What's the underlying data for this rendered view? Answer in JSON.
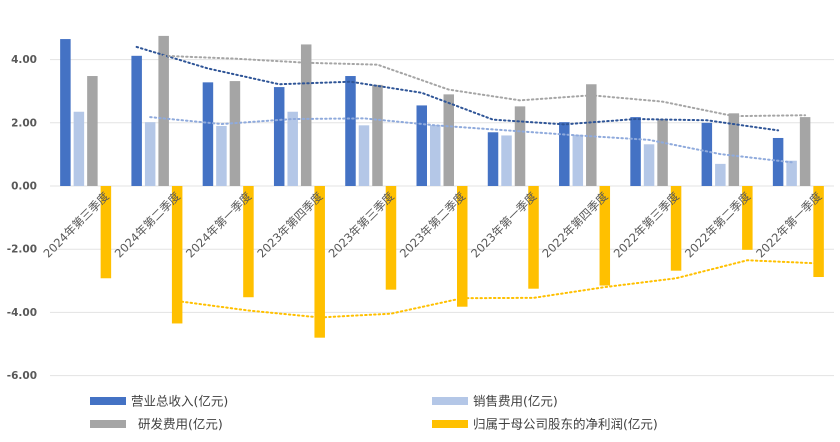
{
  "chart_data": {
    "type": "bar",
    "title": "",
    "xlabel": "",
    "ylabel": "",
    "ylim": [
      -6,
      4.8
    ],
    "yticks": [
      4.0,
      2.0,
      0.0,
      -2.0,
      -4.0,
      -6.0
    ],
    "ytick_labels": [
      "4.00",
      "2.00",
      "0.00",
      "-2.00",
      "-4.00",
      "-6.00"
    ],
    "grid": true,
    "legend_position": "bottom",
    "categories": [
      "2024年第三季度",
      "2024年第二季度",
      "2024年第一季度",
      "2023年第四季度",
      "2023年第三季度",
      "2023年第二季度",
      "2023年第一季度",
      "2022年第四季度",
      "2022年第三季度",
      "2022年第二季度",
      "2022年第一季度"
    ],
    "series": [
      {
        "name": "营业总收入(亿元)",
        "color": "#4472c4",
        "values": [
          4.65,
          4.12,
          3.28,
          3.13,
          3.48,
          2.55,
          1.7,
          2.02,
          2.18,
          2.0,
          1.52
        ]
      },
      {
        "name": "销售费用(亿元)",
        "color": "#b4c7e7",
        "values": [
          2.35,
          2.02,
          1.9,
          2.35,
          1.92,
          1.93,
          1.6,
          1.62,
          1.32,
          0.7,
          0.8
        ]
      },
      {
        "name": "研发费用(亿元)",
        "color": "#a5a5a5",
        "values": [
          3.48,
          4.75,
          3.32,
          4.48,
          3.2,
          2.9,
          2.52,
          3.22,
          2.12,
          2.3,
          2.18
        ]
      },
      {
        "name": "归属于母公司股东的净利润(亿元)",
        "color": "#ffc000",
        "values": [
          -2.92,
          -4.35,
          -3.52,
          -4.8,
          -3.28,
          -3.82,
          -3.25,
          -3.15,
          -2.68,
          -2.02,
          -2.88
        ]
      }
    ],
    "trendlines": [
      {
        "series": "营业总收入(亿元)",
        "style": "dotted",
        "color": "#2f5597",
        "values": [
          null,
          4.4,
          3.72,
          3.22,
          3.3,
          2.95,
          2.1,
          1.95,
          2.12,
          2.08,
          1.76
        ]
      },
      {
        "series": "销售费用(亿元)",
        "style": "dotted",
        "color": "#8faadc",
        "values": [
          null,
          2.18,
          1.96,
          2.12,
          2.14,
          1.92,
          1.76,
          1.6,
          1.46,
          1.01,
          0.75
        ]
      },
      {
        "series": "研发费用(亿元)",
        "style": "dotted",
        "color": "#a5a5a5",
        "values": [
          null,
          4.12,
          4.03,
          3.9,
          3.84,
          3.05,
          2.71,
          2.87,
          2.67,
          2.21,
          2.24
        ]
      },
      {
        "series": "归属于母公司股东的净利润(亿元)",
        "style": "dotted",
        "color": "#ffc000",
        "values": [
          null,
          -3.64,
          -3.94,
          -4.16,
          -4.04,
          -3.55,
          -3.54,
          -3.2,
          -2.92,
          -2.35,
          -2.45
        ]
      }
    ]
  }
}
